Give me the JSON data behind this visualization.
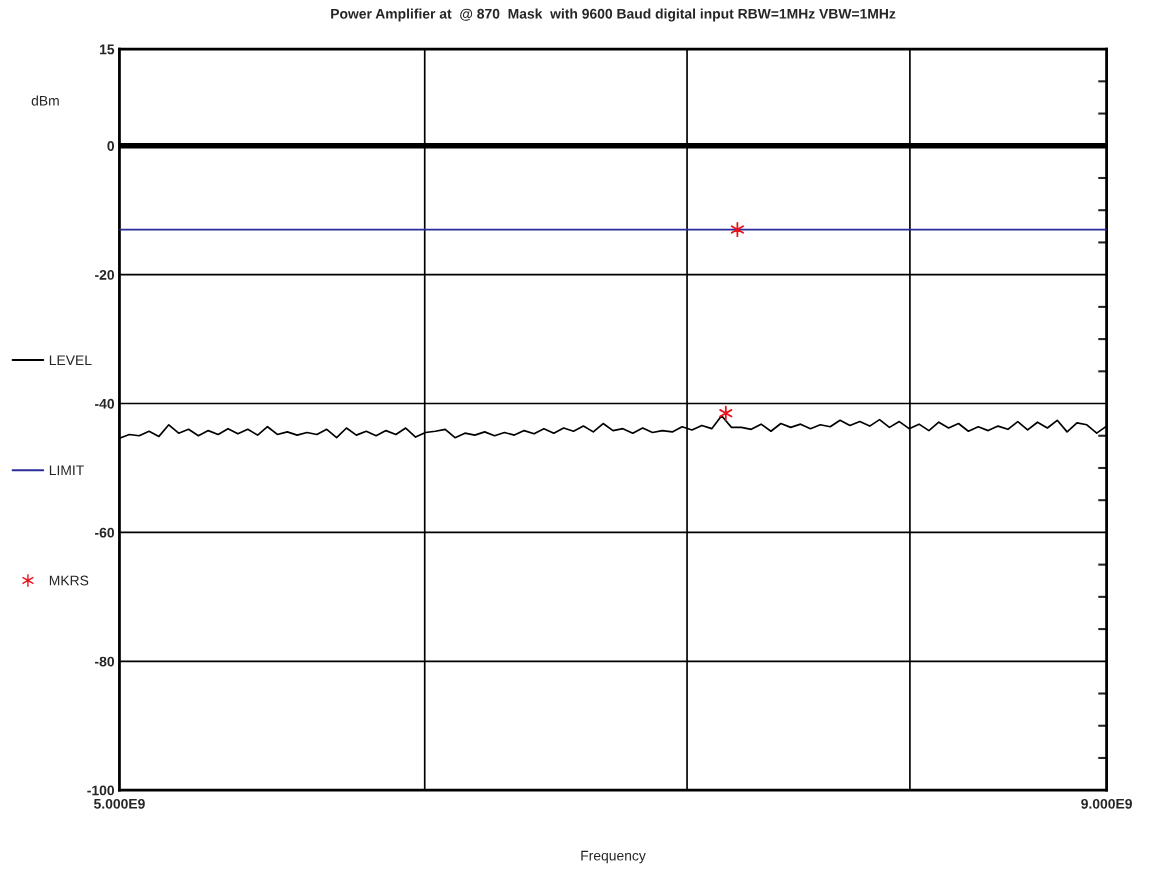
{
  "chart_data": {
    "type": "line",
    "title": "Power Amplifier at  @ 870  Mask  with 9600 Baud digital input RBW=1MHz VBW=1MHz",
    "xlabel": "Frequency",
    "ylabel": "dBm",
    "xlim": [
      5000000000.0,
      9000000000.0
    ],
    "xticks": [
      {
        "value": 5000000000.0,
        "label": "5.000E9"
      },
      {
        "value": 9000000000.0,
        "label": "9.000E9"
      }
    ],
    "ylim": [
      -100,
      15
    ],
    "yticks": [
      15,
      {
        "value": 10,
        "label": null
      },
      {
        "value": 5,
        "label": null
      },
      0,
      {
        "value": -5,
        "label": null
      },
      {
        "value": -10,
        "label": null
      },
      {
        "value": -15,
        "label": null
      },
      -20,
      {
        "value": -25,
        "label": null
      },
      {
        "value": -30,
        "label": null
      },
      {
        "value": -35,
        "label": null
      },
      -40,
      {
        "value": -45,
        "label": null
      },
      {
        "value": -50,
        "label": null
      },
      {
        "value": -55,
        "label": null
      },
      -60,
      {
        "value": -65,
        "label": null
      },
      {
        "value": -70,
        "label": null
      },
      {
        "value": -75,
        "label": null
      },
      -80,
      {
        "value": -85,
        "label": null
      },
      {
        "value": -90,
        "label": null
      },
      {
        "value": -95,
        "label": null
      },
      -100
    ],
    "grid": "y",
    "legend": "left",
    "ref_lines": [
      {
        "axis": "y",
        "value": 0,
        "color": "#000000"
      },
      {
        "axis": "x",
        "value": 6237000000.0,
        "color": "#000000"
      },
      {
        "axis": "x",
        "value": 7300000000.0,
        "color": "#000000"
      },
      {
        "axis": "x",
        "value": 8203000000.0,
        "color": "#000000"
      }
    ],
    "series": [
      {
        "name": "LEVEL",
        "color": "#000000",
        "x": [
          5000000000.0,
          5040000000.0,
          5080000000.0,
          5120000000.0,
          5160000000.0,
          5200000000.0,
          5240000000.0,
          5280000000.0,
          5320000000.0,
          5360000000.0,
          5400000000.0,
          5440000000.0,
          5480000000.0,
          5520000000.0,
          5560000000.0,
          5600000000.0,
          5640000000.0,
          5680000000.0,
          5720000000.0,
          5760000000.0,
          5800000000.0,
          5840000000.0,
          5880000000.0,
          5920000000.0,
          5960000000.0,
          6000000000.0,
          6040000000.0,
          6080000000.0,
          6120000000.0,
          6160000000.0,
          6200000000.0,
          6240000000.0,
          6280000000.0,
          6320000000.0,
          6360000000.0,
          6400000000.0,
          6440000000.0,
          6480000000.0,
          6520000000.0,
          6560000000.0,
          6600000000.0,
          6640000000.0,
          6680000000.0,
          6720000000.0,
          6760000000.0,
          6800000000.0,
          6840000000.0,
          6880000000.0,
          6920000000.0,
          6960000000.0,
          7000000000.0,
          7040000000.0,
          7080000000.0,
          7120000000.0,
          7160000000.0,
          7200000000.0,
          7240000000.0,
          7280000000.0,
          7320000000.0,
          7360000000.0,
          7400000000.0,
          7440000000.0,
          7480000000.0,
          7520000000.0,
          7560000000.0,
          7600000000.0,
          7640000000.0,
          7680000000.0,
          7720000000.0,
          7760000000.0,
          7800000000.0,
          7840000000.0,
          7880000000.0,
          7920000000.0,
          7960000000.0,
          8000000000.0,
          8040000000.0,
          8080000000.0,
          8120000000.0,
          8160000000.0,
          8200000000.0,
          8240000000.0,
          8280000000.0,
          8320000000.0,
          8360000000.0,
          8400000000.0,
          8440000000.0,
          8480000000.0,
          8520000000.0,
          8560000000.0,
          8600000000.0,
          8640000000.0,
          8680000000.0,
          8720000000.0,
          8760000000.0,
          8800000000.0,
          8840000000.0,
          8880000000.0,
          8920000000.0,
          8960000000.0,
          9000000000.0
        ],
        "values": [
          -45.4,
          -44.8,
          -45.0,
          -44.3,
          -45.1,
          -43.3,
          -44.6,
          -44.0,
          -45.0,
          -44.2,
          -44.8,
          -43.9,
          -44.7,
          -44.0,
          -44.9,
          -43.6,
          -44.8,
          -44.4,
          -44.9,
          -44.5,
          -44.8,
          -44.0,
          -45.3,
          -43.8,
          -44.9,
          -44.3,
          -45.0,
          -44.2,
          -44.8,
          -43.8,
          -45.2,
          -44.5,
          -44.3,
          -44.0,
          -45.3,
          -44.6,
          -44.9,
          -44.4,
          -45.0,
          -44.5,
          -44.9,
          -44.2,
          -44.7,
          -43.9,
          -44.6,
          -43.8,
          -44.3,
          -43.5,
          -44.4,
          -43.1,
          -44.2,
          -43.9,
          -44.6,
          -43.8,
          -44.5,
          -44.2,
          -44.4,
          -43.6,
          -44.1,
          -43.4,
          -43.9,
          -41.9,
          -43.7,
          -43.7,
          -44.0,
          -43.2,
          -44.3,
          -43.1,
          -43.7,
          -43.2,
          -43.9,
          -43.3,
          -43.6,
          -42.6,
          -43.4,
          -42.8,
          -43.5,
          -42.5,
          -43.7,
          -42.8,
          -43.9,
          -43.2,
          -44.2,
          -42.9,
          -43.8,
          -43.1,
          -44.3,
          -43.6,
          -44.2,
          -43.5,
          -44.0,
          -42.8,
          -44.1,
          -42.9,
          -43.8,
          -42.6,
          -44.4,
          -43.0,
          -43.3,
          -44.6,
          -43.5
        ]
      },
      {
        "name": "LIMIT",
        "color": "#2b2b9a",
        "x": [
          5000000000.0,
          9000000000.0
        ],
        "values": [
          -13,
          -13
        ]
      },
      {
        "name": "MKRS",
        "type": "scatter",
        "color": "#e8141c",
        "marker": "cross",
        "x": [
          7504000000.0,
          7457000000.0
        ],
        "values": [
          -13,
          -41.5
        ]
      }
    ]
  }
}
